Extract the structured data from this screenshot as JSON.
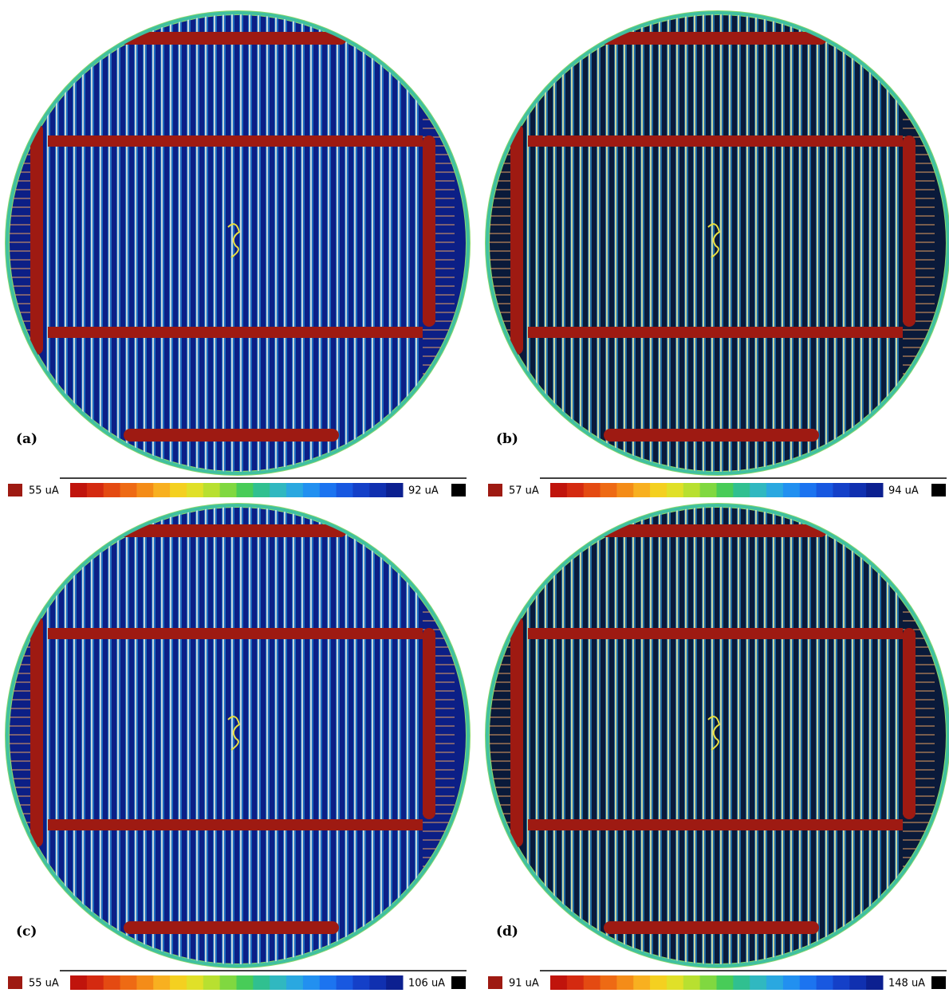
{
  "panels": [
    {
      "label": "(a)",
      "min_label": "55 uA",
      "max_label": "92 uA"
    },
    {
      "label": "(b)",
      "min_label": "57 uA",
      "max_label": "94 uA"
    },
    {
      "label": "(c)",
      "min_label": "55 uA",
      "max_label": "106 uA"
    },
    {
      "label": "(d)",
      "min_label": "91 uA",
      "max_label": "148 uA"
    }
  ]
}
